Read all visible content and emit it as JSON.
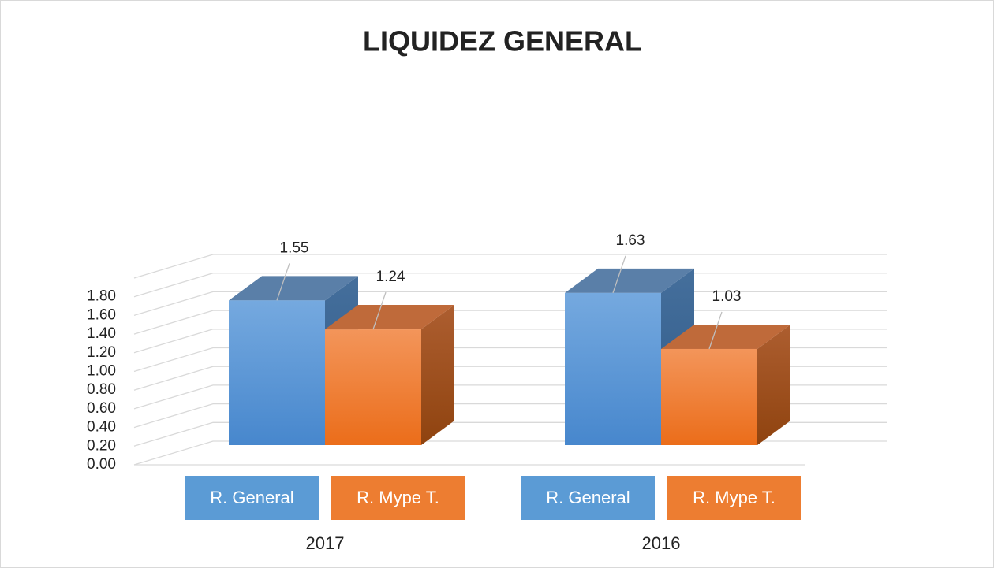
{
  "chart_data": {
    "type": "bar3d",
    "title": "LIQUIDEZ GENERAL",
    "categories": [
      "2017",
      "2016"
    ],
    "series": [
      {
        "name": "R. General",
        "color": "#5b9bd5",
        "values": [
          1.55,
          1.63
        ]
      },
      {
        "name": "R. Mype T.",
        "color": "#ed7d31",
        "values": [
          1.24,
          1.03
        ]
      }
    ],
    "ylim": [
      0,
      2.0
    ],
    "yticks": [
      {
        "value": 0,
        "label": "0.00"
      },
      {
        "value": 0.2,
        "label": "0.20"
      },
      {
        "value": 0.4,
        "label": "0.40"
      },
      {
        "value": 0.6,
        "label": "0.60"
      },
      {
        "value": 0.8,
        "label": "0.80"
      },
      {
        "value": 1.0,
        "label": "1.00"
      },
      {
        "value": 1.2,
        "label": "1.20"
      },
      {
        "value": 1.4,
        "label": "1.40"
      },
      {
        "value": 1.6,
        "label": "1.60"
      },
      {
        "value": 1.8,
        "label": "1.80"
      }
    ],
    "grid": true
  }
}
